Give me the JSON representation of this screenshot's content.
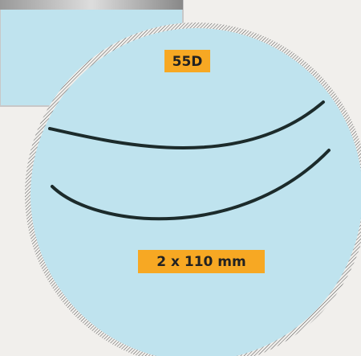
{
  "labels": {
    "hardness": "55D",
    "size": "2 x 110 mm"
  }
}
